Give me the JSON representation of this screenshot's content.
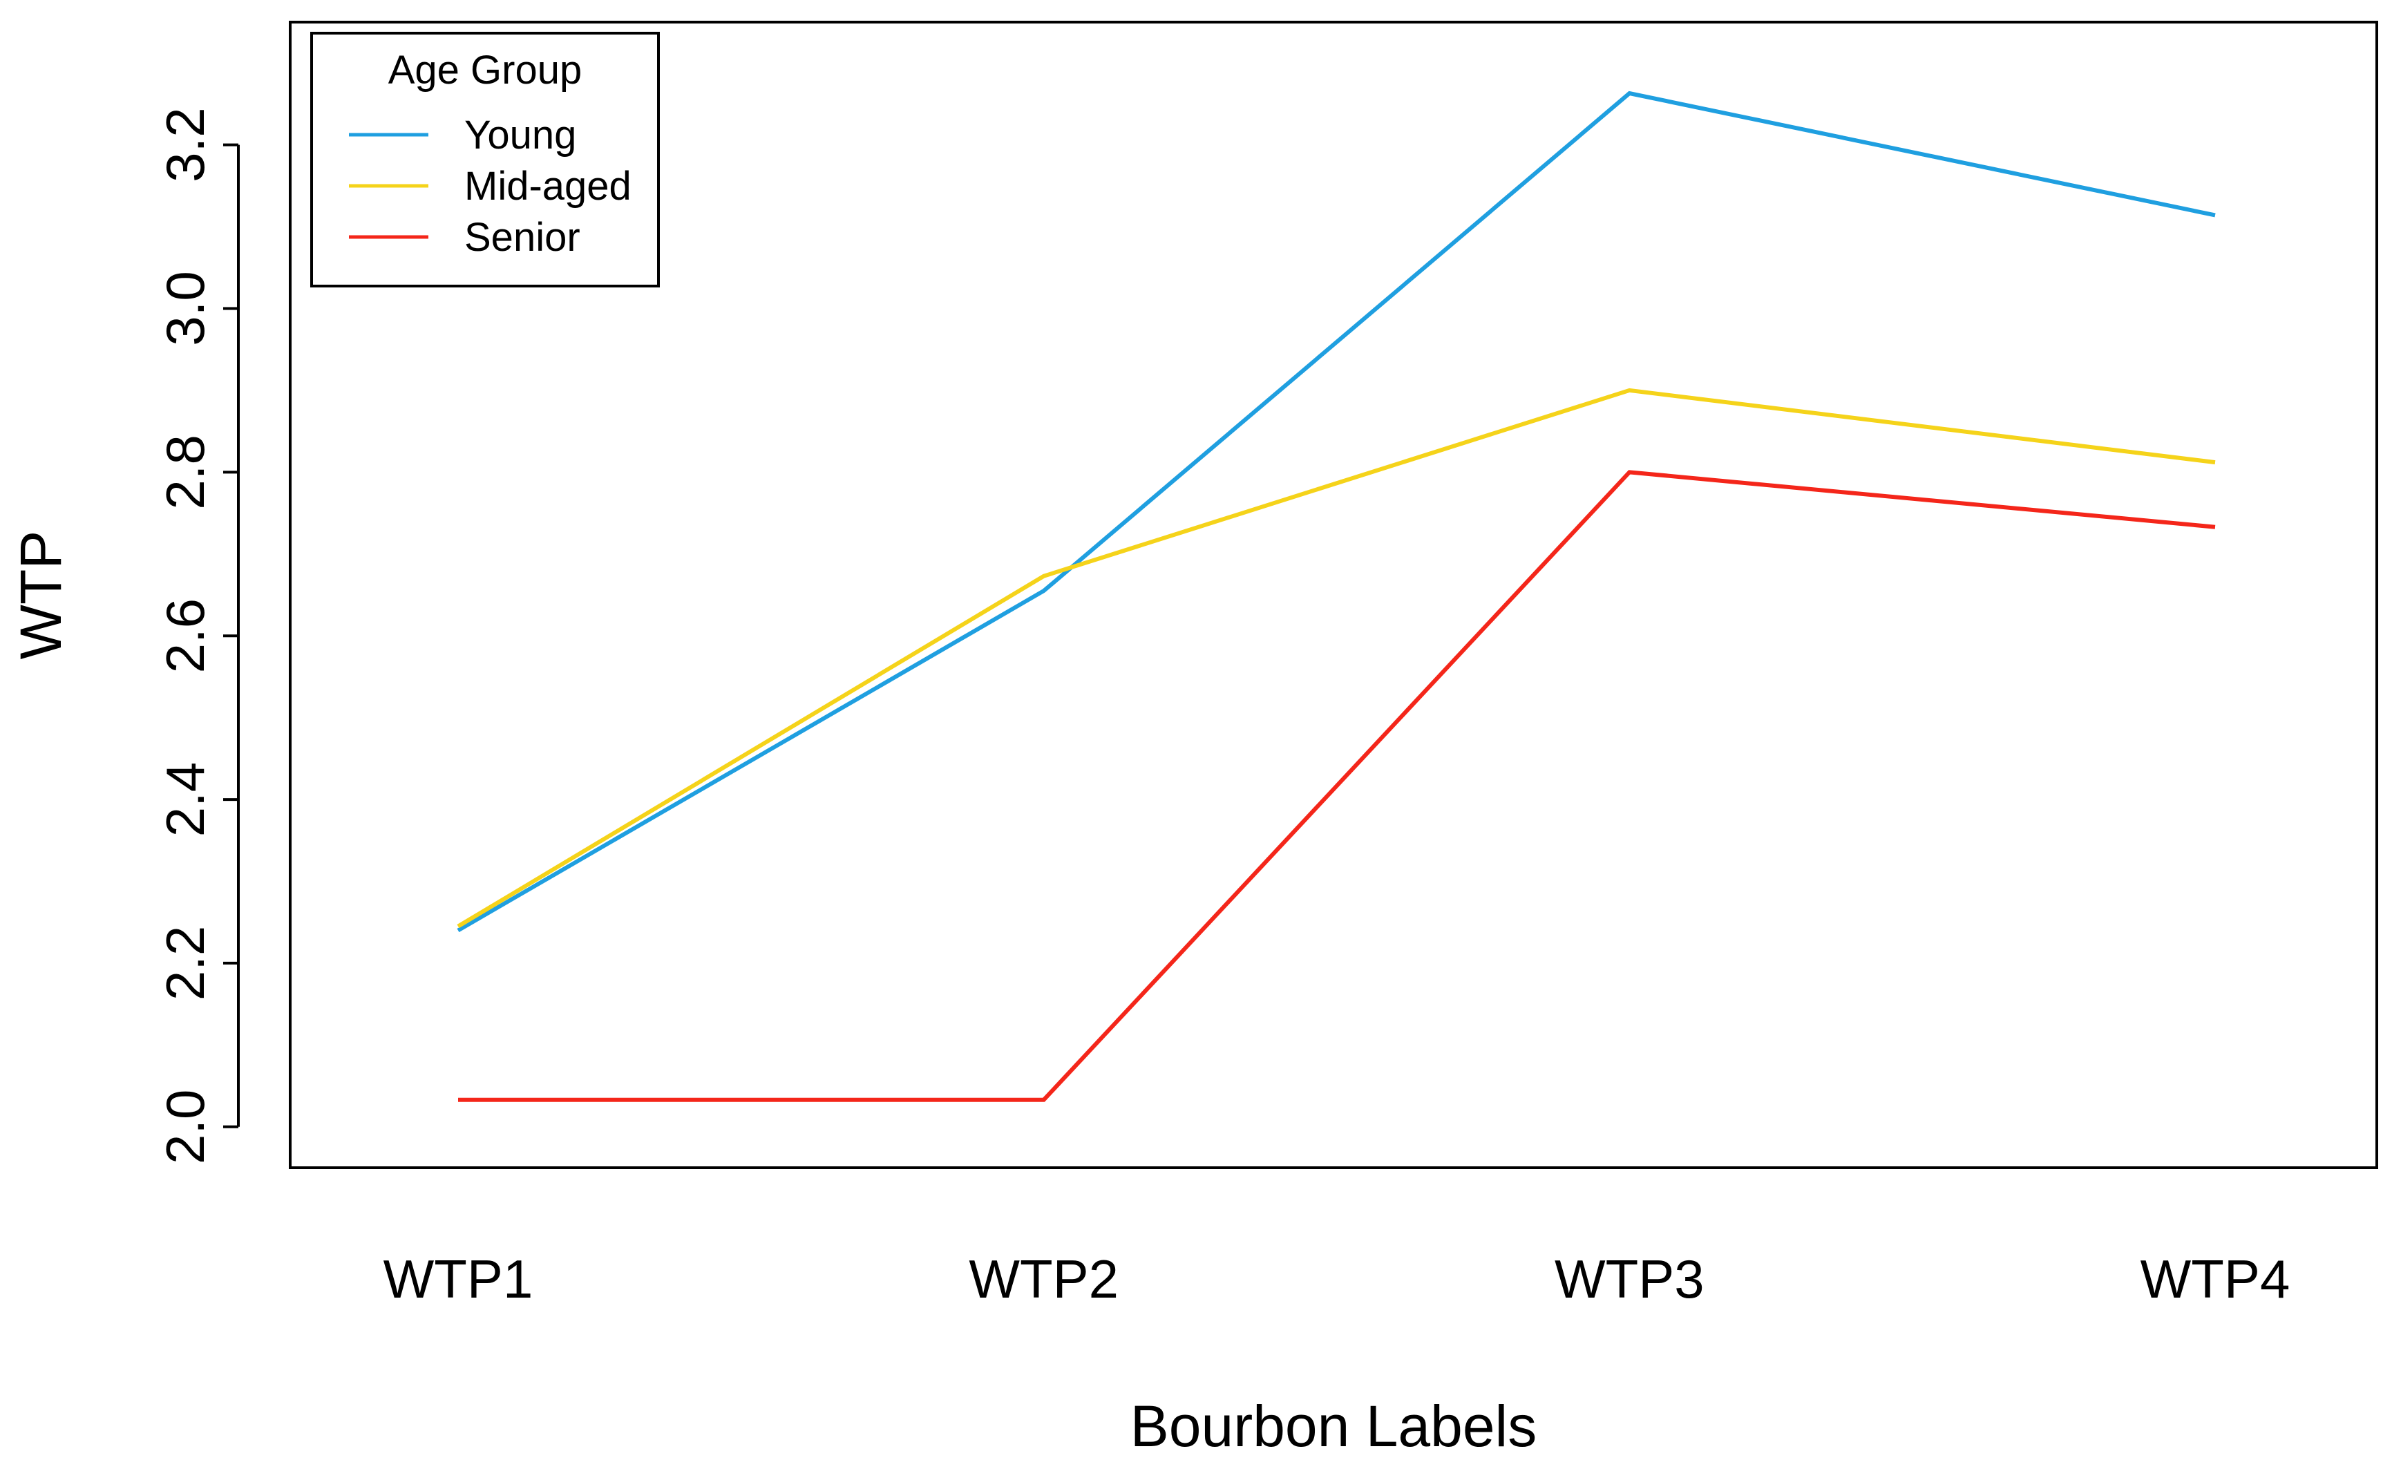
{
  "chart_data": {
    "type": "line",
    "title": "",
    "xlabel": "Bourbon Labels",
    "ylabel": "WTP",
    "categories": [
      "WTP1",
      "WTP2",
      "WTP3",
      "WTP4"
    ],
    "ylim": [
      1.95,
      3.35
    ],
    "yticks": [
      2.0,
      2.2,
      2.4,
      2.6,
      2.8,
      3.0,
      3.2
    ],
    "ytick_labels": [
      "2.0",
      "2.2",
      "2.4",
      "2.6",
      "2.8",
      "3.0",
      "3.2"
    ],
    "grid": false,
    "legend": {
      "title": "Age Group",
      "position": "top-left"
    },
    "series": [
      {
        "name": "Young",
        "color": "#1f9fe0",
        "values": [
          2.24,
          2.655,
          3.263,
          3.114
        ]
      },
      {
        "name": "Mid-aged",
        "color": "#f5d31a",
        "values": [
          2.245,
          2.673,
          2.9,
          2.812
        ]
      },
      {
        "name": "Senior",
        "color": "#f4261a",
        "values": [
          2.033,
          2.033,
          2.8,
          2.733
        ]
      }
    ]
  }
}
